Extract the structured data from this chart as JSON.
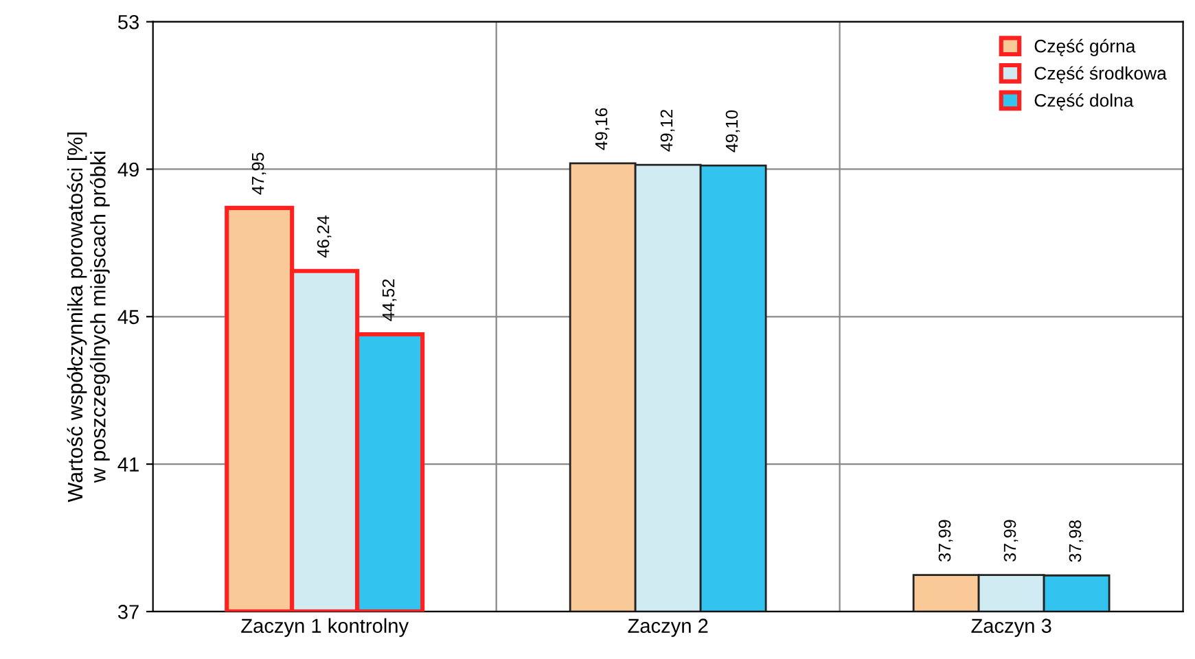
{
  "chart_data": {
    "type": "bar",
    "ylabel": "Wartość współczynnika porowatości [%]\nw poszczególnych miejscach próbki",
    "categories": [
      "Zaczyn 1 kontrolny",
      "Zaczyn 2",
      "Zaczyn 3"
    ],
    "series": [
      {
        "name": "Część górna",
        "color": "#f9c998",
        "values": [
          47.95,
          49.16,
          37.99
        ]
      },
      {
        "name": "Część środkowa",
        "color": "#d0ebf1",
        "values": [
          46.24,
          49.12,
          37.99
        ]
      },
      {
        "name": "Część dolna",
        "color": "#33c3ef",
        "values": [
          44.52,
          49.1,
          37.98
        ]
      }
    ],
    "value_labels": [
      [
        "47,95",
        "49,16",
        "37,99"
      ],
      [
        "46,24",
        "49,12",
        "37,99"
      ],
      [
        "44,52",
        "49,10",
        "37,98"
      ]
    ],
    "ylim": [
      37,
      53
    ],
    "yticks": [
      37,
      41,
      45,
      49,
      53
    ],
    "grid": "y",
    "legend": "top right"
  }
}
